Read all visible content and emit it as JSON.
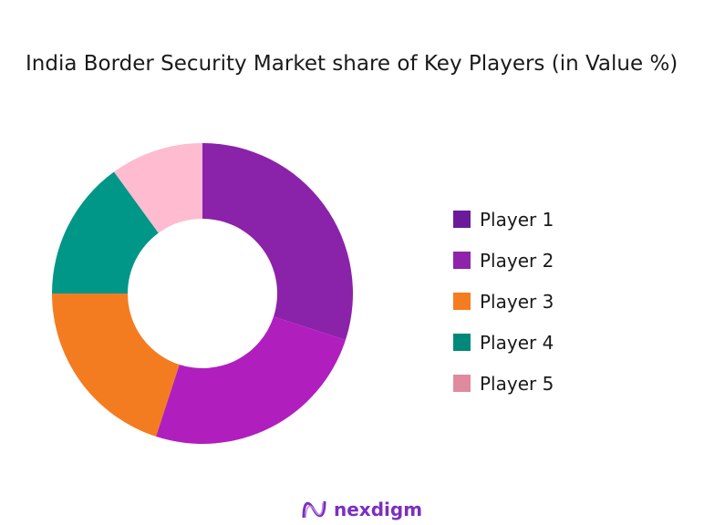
{
  "chart_data": {
    "type": "pie",
    "donut": true,
    "title": "India Border Security Market share of Key Players (in Value %)",
    "categories": [
      "Player 1",
      "Player 2",
      "Player 3",
      "Player 4",
      "Player 5"
    ],
    "values": [
      30,
      25,
      20,
      15,
      10
    ],
    "slice_colors": [
      "#8B22AA",
      "#B01FBE",
      "#F47C20",
      "#009688",
      "#FFBBD0"
    ],
    "legend_colors": [
      "#6A1B9A",
      "#8E24AA",
      "#F57C20",
      "#00897B",
      "#E08AA0"
    ],
    "legend_position": "right"
  },
  "brand": {
    "name": "nexdigm",
    "color": "#7B2FBF"
  }
}
